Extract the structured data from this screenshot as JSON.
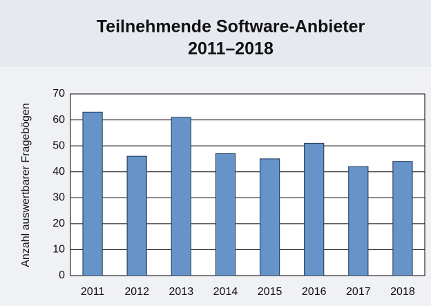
{
  "chart_data": {
    "type": "bar",
    "title": "Teilnehmende Software-Anbieter",
    "subtitle": "2011–2018",
    "y_label": "Anzahl auswertbarer Fragebögen",
    "categories": [
      "2011",
      "2012",
      "2013",
      "2014",
      "2015",
      "2016",
      "2017",
      "2018"
    ],
    "values": [
      63,
      46,
      61,
      47,
      45,
      51,
      42,
      44
    ],
    "color": "#6794c8",
    "ylim": [
      0,
      70
    ],
    "yticks": [
      0,
      10,
      20,
      30,
      40,
      50,
      60,
      70
    ],
    "grid": true
  }
}
